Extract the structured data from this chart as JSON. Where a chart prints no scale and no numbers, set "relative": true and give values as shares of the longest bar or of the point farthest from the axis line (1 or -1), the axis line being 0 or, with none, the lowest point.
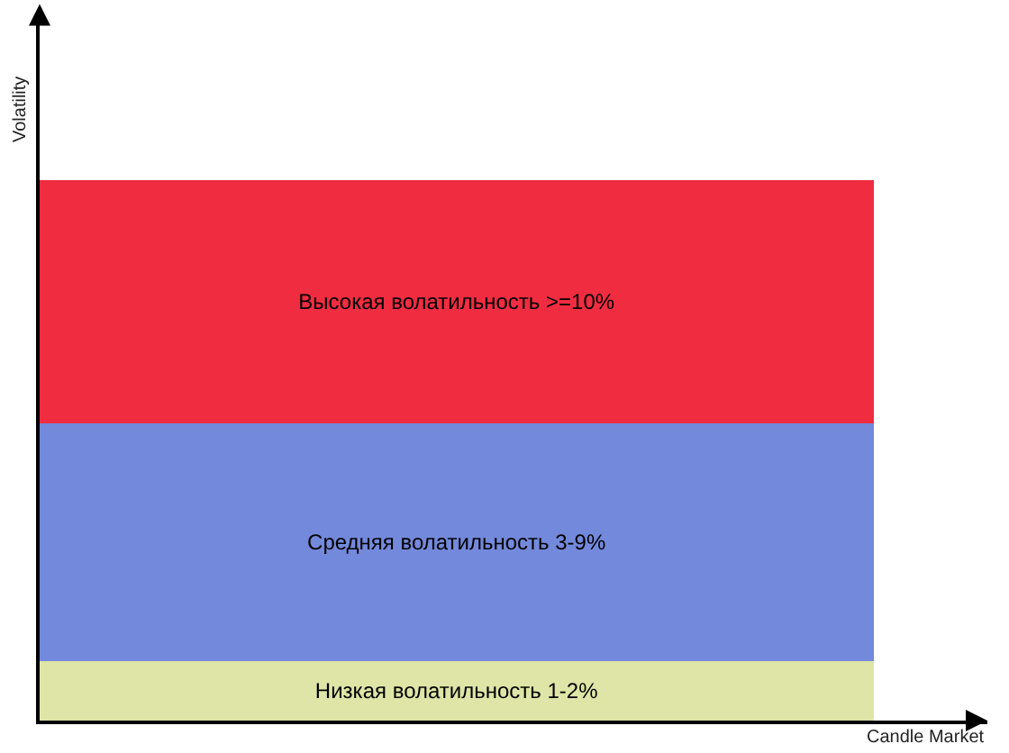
{
  "chart_data": {
    "type": "bar",
    "stacked": true,
    "relative": true,
    "categories": [
      null
    ],
    "xlabel": "Candle Market",
    "ylabel": "Volatility",
    "legend": false,
    "series": [
      {
        "name": "Низкая волатильность 1-2%",
        "color": "#dee5a6",
        "values": [
          0.11
        ]
      },
      {
        "name": "Средняя волатильность 3-9%",
        "color": "#7389db",
        "values": [
          0.44
        ]
      },
      {
        "name": "Высокая волатильность >=10%",
        "color": "#f02c41",
        "values": [
          0.45
        ]
      }
    ]
  }
}
